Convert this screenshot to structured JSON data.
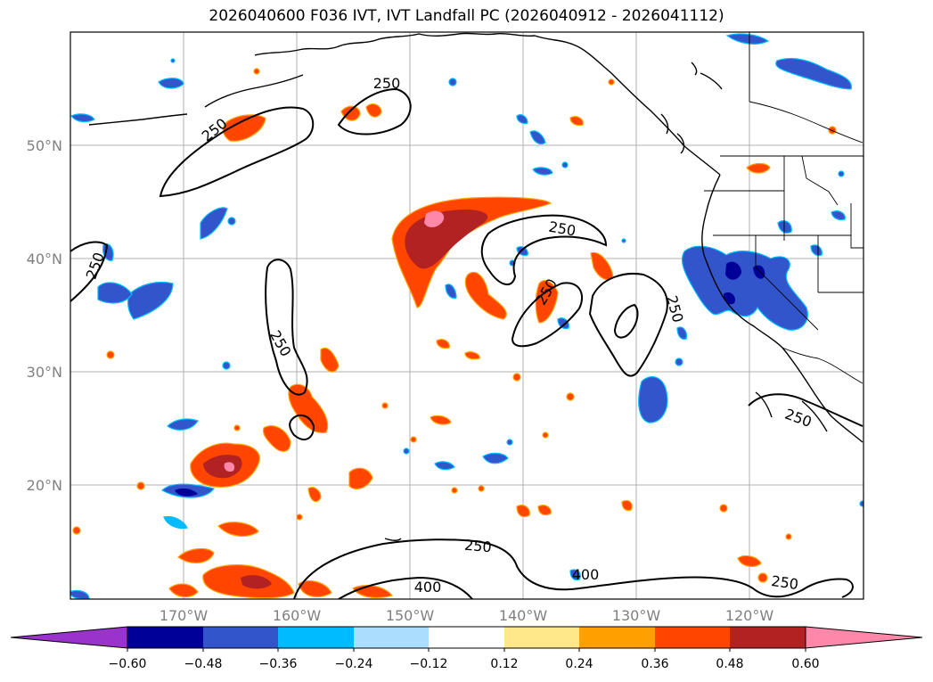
{
  "title": "2026040600 F036 IVT, IVT Landfall PC (2026040912 - 2026041112)",
  "lat_labels": [
    "50°N",
    "40°N",
    "30°N",
    "20°N"
  ],
  "lon_labels": [
    "170°W",
    "160°W",
    "150°W",
    "140°W",
    "130°W",
    "120°W"
  ],
  "contour_labels": [
    "250",
    "250",
    "250",
    "250",
    "250",
    "250",
    "250",
    "250",
    "250",
    "250",
    "400",
    "400"
  ],
  "colorbar": {
    "ticks": [
      "−0.60",
      "−0.48",
      "−0.36",
      "−0.24",
      "−0.12",
      "0.12",
      "0.24",
      "0.36",
      "0.48",
      "0.60"
    ],
    "colors": [
      "#9933cc",
      "#000099",
      "#3355cc",
      "#00bbff",
      "#aaddff",
      "#ffffff",
      "#ffe88a",
      "#ffa000",
      "#ff4500",
      "#b22222",
      "#ff88aa"
    ]
  }
}
